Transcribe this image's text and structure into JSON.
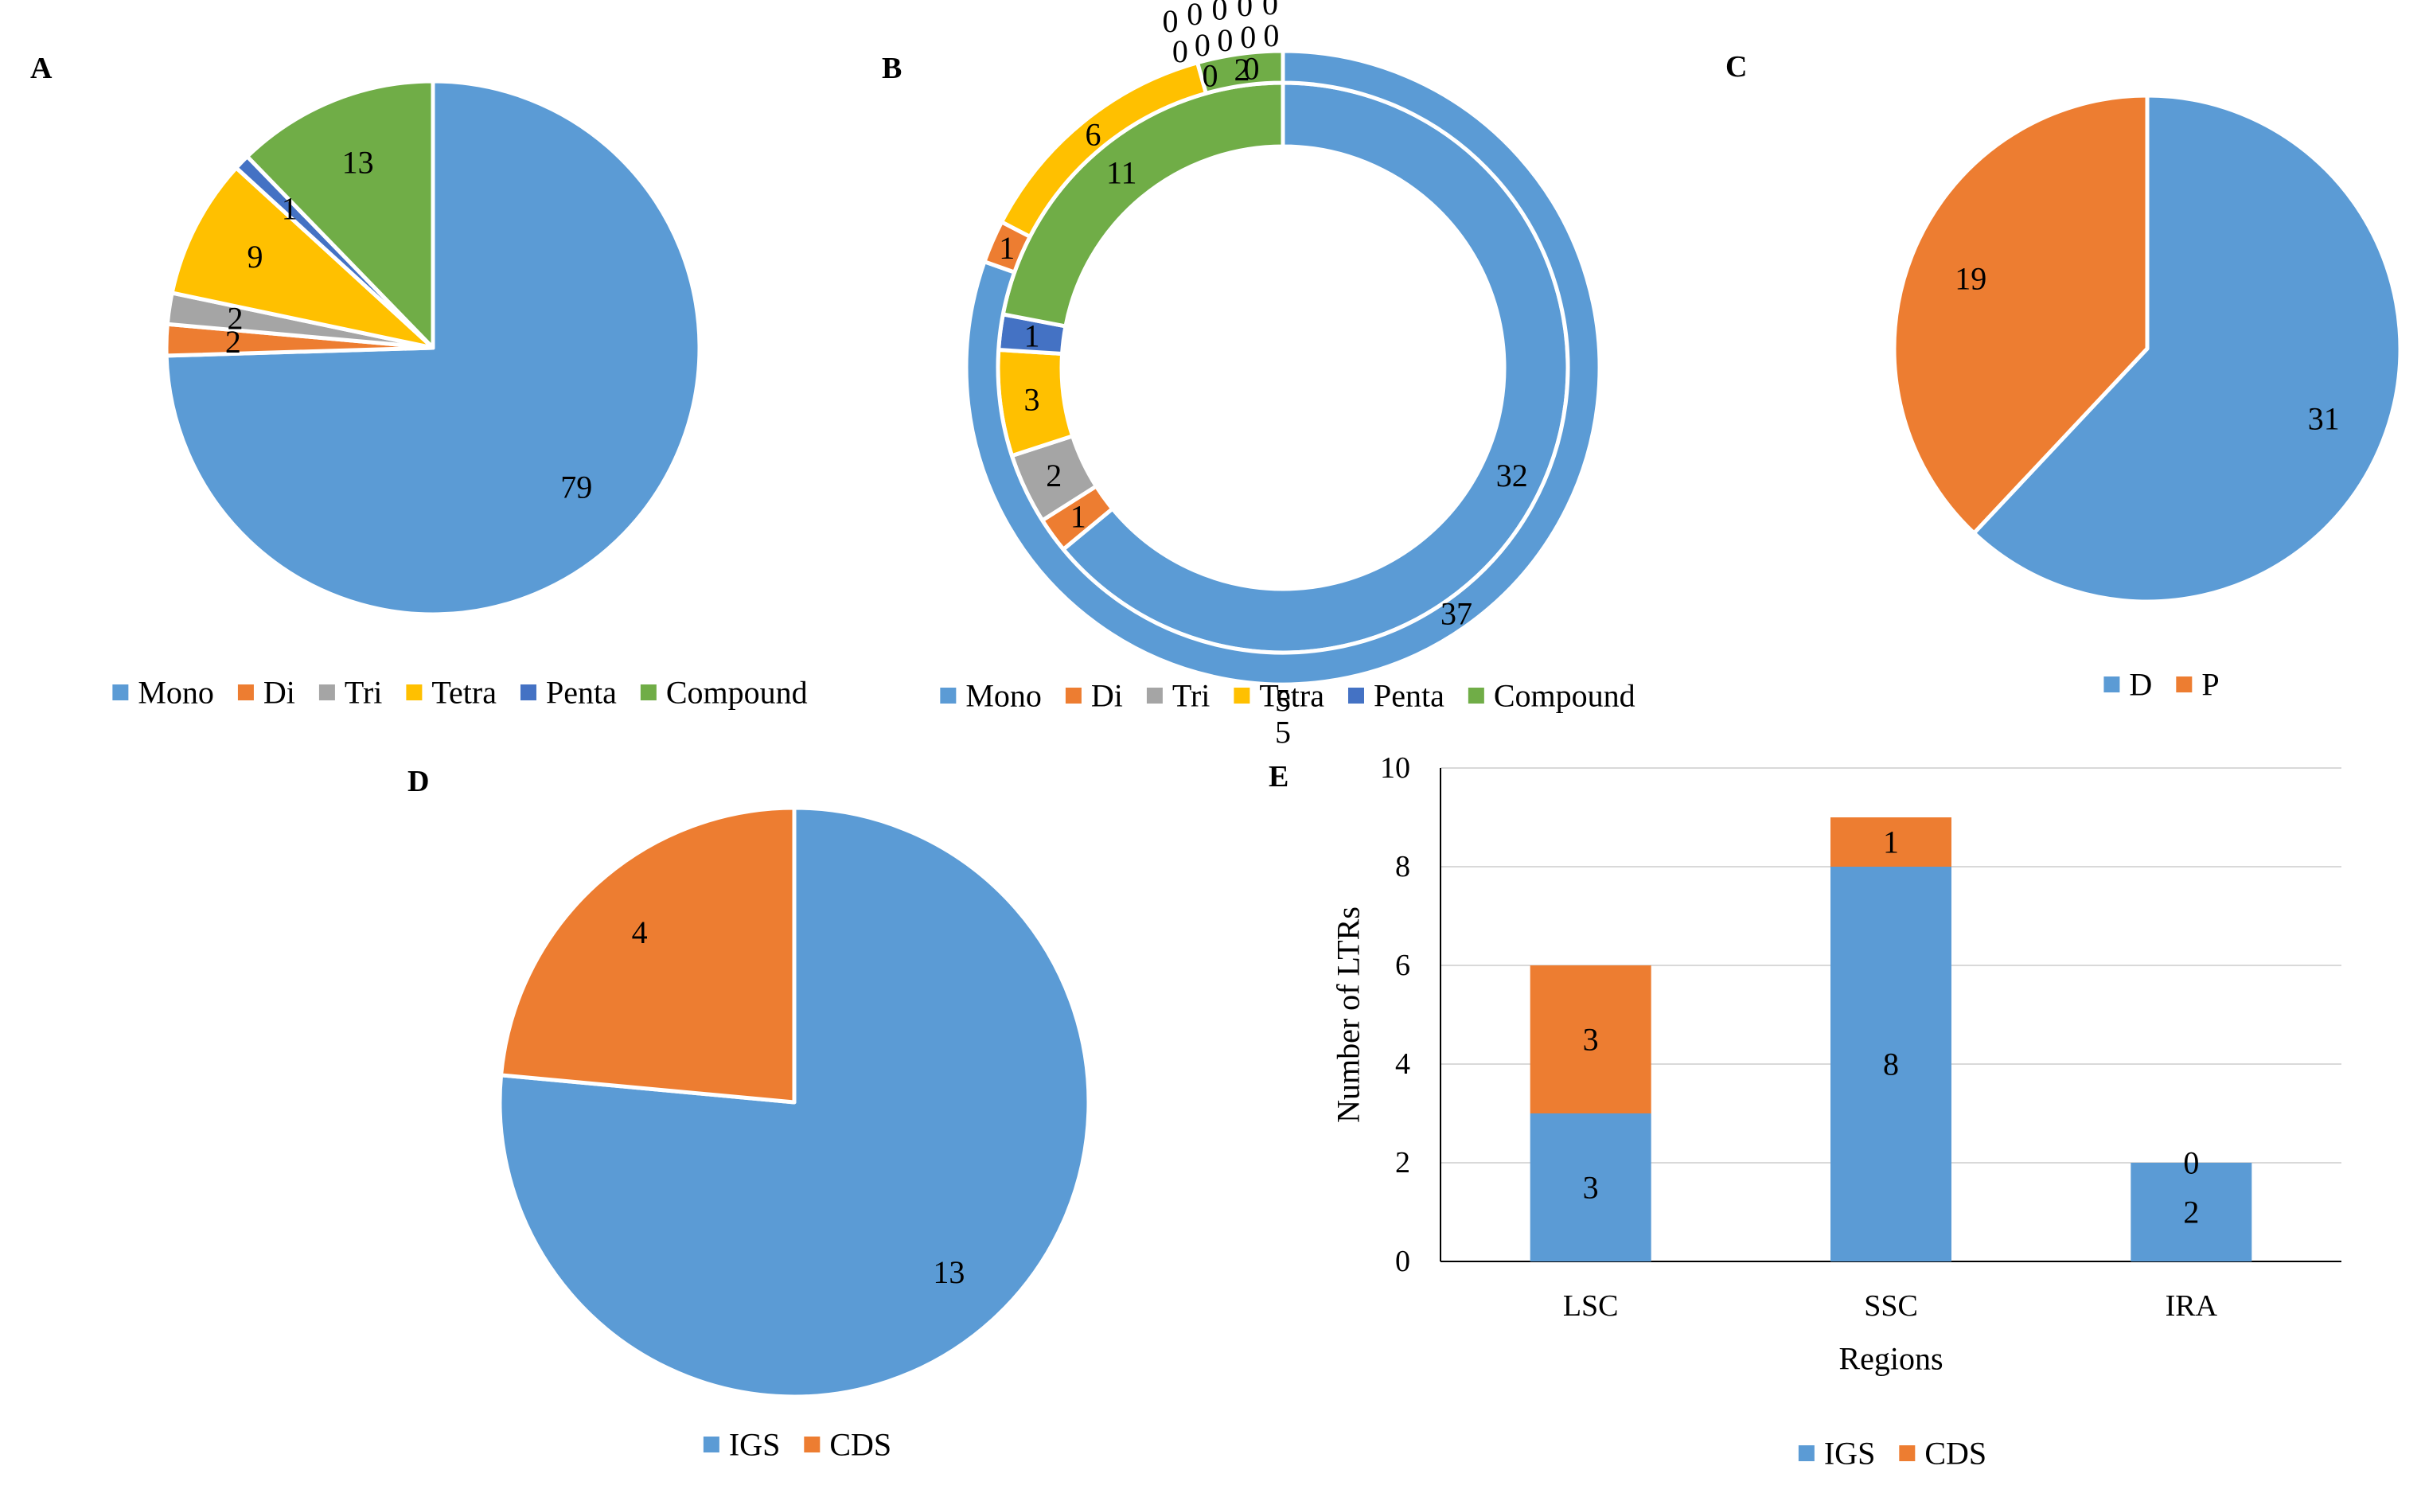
{
  "colors": {
    "blue": "#5B9BD5",
    "orange": "#ED7D31",
    "gray": "#A5A5A5",
    "yellow": "#FFC000",
    "darkblue": "#4472C4",
    "green": "#70AD47"
  },
  "chart_data": [
    {
      "id": "A",
      "panel_label": "A",
      "type": "pie",
      "categories": [
        "Mono",
        "Di",
        "Tri",
        "Tetra",
        "Penta",
        "Compound"
      ],
      "values": [
        79,
        2,
        2,
        9,
        1,
        13
      ],
      "labels": [
        "79",
        "2",
        "2",
        "9",
        "1",
        "13"
      ],
      "legend": [
        "Mono",
        "Di",
        "Tri",
        "Tetra",
        "Penta",
        "Compound"
      ],
      "legend_position": "bottom"
    },
    {
      "id": "B",
      "panel_label": "B",
      "type": "doughnut",
      "categories": [
        "Mono",
        "Di",
        "Tri",
        "Tetra",
        "Penta",
        "Compound"
      ],
      "rings": [
        {
          "values": [
            32,
            1,
            2,
            3,
            1,
            11
          ],
          "labels": [
            "32",
            "1",
            "2",
            "3",
            "1",
            "11"
          ]
        },
        {
          "values": [
            37,
            1,
            0,
            6,
            0,
            2
          ],
          "labels": [
            "37",
            "1",
            "0",
            "6",
            "0",
            "2"
          ]
        },
        {
          "values": [
            5,
            0,
            0,
            0,
            0,
            0
          ],
          "labels": [
            "5",
            "0",
            "0",
            "0",
            "0",
            "0"
          ]
        },
        {
          "values": [
            5,
            0,
            0,
            0,
            0,
            0
          ],
          "labels": [
            "5",
            "0",
            "0",
            "0",
            "0",
            "0"
          ]
        }
      ],
      "legend": [
        "Mono",
        "Di",
        "Tri",
        "Tetra",
        "Penta",
        "Compound"
      ],
      "legend_position": "bottom"
    },
    {
      "id": "C",
      "panel_label": "C",
      "type": "pie",
      "categories": [
        "D",
        "P"
      ],
      "values": [
        31,
        19
      ],
      "labels": [
        "31",
        "19"
      ],
      "legend": [
        "D",
        "P"
      ],
      "legend_position": "bottom"
    },
    {
      "id": "D",
      "panel_label": "D",
      "type": "pie",
      "categories": [
        "IGS",
        "CDS"
      ],
      "values": [
        13,
        4
      ],
      "labels": [
        "13",
        "4"
      ],
      "legend": [
        "IGS",
        "CDS"
      ],
      "legend_position": "bottom"
    },
    {
      "id": "E",
      "panel_label": "E",
      "type": "bar",
      "stacked": true,
      "categories": [
        "LSC",
        "SSC",
        "IRA"
      ],
      "series": [
        {
          "name": "IGS",
          "values": [
            3,
            8,
            2
          ],
          "labels": [
            "3",
            "8",
            "2"
          ]
        },
        {
          "name": "CDS",
          "values": [
            3,
            1,
            0
          ],
          "labels": [
            "3",
            "1",
            "0"
          ]
        }
      ],
      "ylabel": "Number of LTRs",
      "xlabel": "Regions",
      "ylim": [
        0,
        10
      ],
      "yticks": [
        "0",
        "2",
        "4",
        "6",
        "8",
        "10"
      ],
      "grid": true,
      "legend": [
        "IGS",
        "CDS"
      ],
      "legend_position": "bottom"
    }
  ]
}
